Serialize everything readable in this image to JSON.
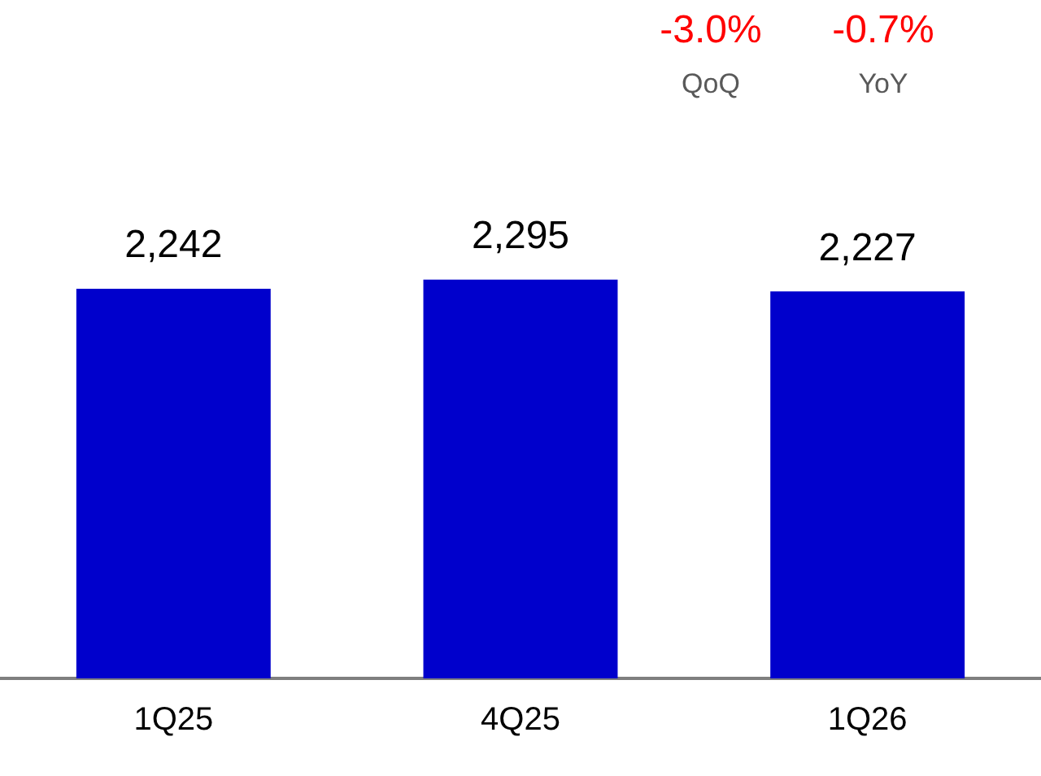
{
  "chart_data": {
    "type": "bar",
    "categories": [
      "1Q25",
      "4Q25",
      "1Q26"
    ],
    "values": [
      2242,
      2295,
      2227
    ],
    "color": "#0000cc",
    "value_labels": [
      "2,242",
      "2,295",
      "2,227"
    ],
    "grid": false,
    "legend": false,
    "annotations": [
      "-3.0%",
      "QoQ",
      "-0.7%",
      "YoY"
    ]
  }
}
